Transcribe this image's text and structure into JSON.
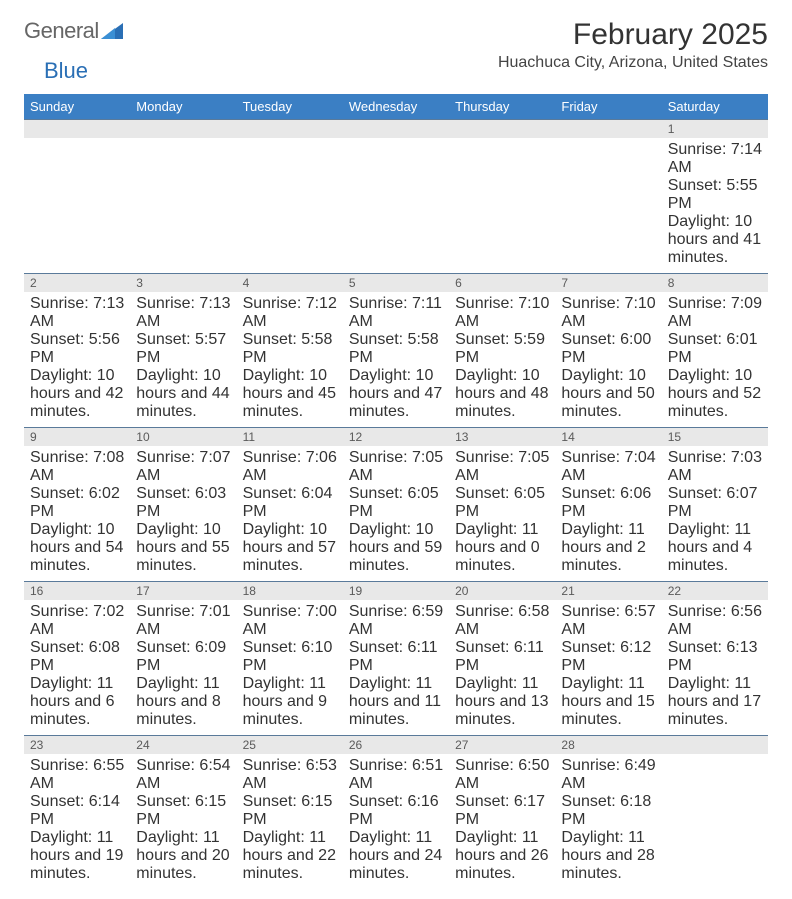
{
  "brand": {
    "text1": "General",
    "text2": "Blue"
  },
  "title": "February 2025",
  "location": "Huachuca City, Arizona, United States",
  "colors": {
    "header_bg": "#3b7fc4",
    "header_text": "#ffffff",
    "daynum_bg": "#e8e8e8",
    "daynum_text": "#5a5a5a",
    "week_border": "#5a7a9a",
    "body_text": "#333333",
    "page_bg": "#ffffff"
  },
  "typography": {
    "title_fontsize": 30,
    "location_fontsize": 16,
    "weekday_fontsize": 13,
    "daynum_fontsize": 12,
    "body_fontsize": 10.5
  },
  "weekdays": [
    "Sunday",
    "Monday",
    "Tuesday",
    "Wednesday",
    "Thursday",
    "Friday",
    "Saturday"
  ],
  "weeks": [
    [
      null,
      null,
      null,
      null,
      null,
      null,
      {
        "n": "1",
        "sunrise": "7:14 AM",
        "sunset": "5:55 PM",
        "dl": "10 hours and 41 minutes."
      }
    ],
    [
      {
        "n": "2",
        "sunrise": "7:13 AM",
        "sunset": "5:56 PM",
        "dl": "10 hours and 42 minutes."
      },
      {
        "n": "3",
        "sunrise": "7:13 AM",
        "sunset": "5:57 PM",
        "dl": "10 hours and 44 minutes."
      },
      {
        "n": "4",
        "sunrise": "7:12 AM",
        "sunset": "5:58 PM",
        "dl": "10 hours and 45 minutes."
      },
      {
        "n": "5",
        "sunrise": "7:11 AM",
        "sunset": "5:58 PM",
        "dl": "10 hours and 47 minutes."
      },
      {
        "n": "6",
        "sunrise": "7:10 AM",
        "sunset": "5:59 PM",
        "dl": "10 hours and 48 minutes."
      },
      {
        "n": "7",
        "sunrise": "7:10 AM",
        "sunset": "6:00 PM",
        "dl": "10 hours and 50 minutes."
      },
      {
        "n": "8",
        "sunrise": "7:09 AM",
        "sunset": "6:01 PM",
        "dl": "10 hours and 52 minutes."
      }
    ],
    [
      {
        "n": "9",
        "sunrise": "7:08 AM",
        "sunset": "6:02 PM",
        "dl": "10 hours and 54 minutes."
      },
      {
        "n": "10",
        "sunrise": "7:07 AM",
        "sunset": "6:03 PM",
        "dl": "10 hours and 55 minutes."
      },
      {
        "n": "11",
        "sunrise": "7:06 AM",
        "sunset": "6:04 PM",
        "dl": "10 hours and 57 minutes."
      },
      {
        "n": "12",
        "sunrise": "7:05 AM",
        "sunset": "6:05 PM",
        "dl": "10 hours and 59 minutes."
      },
      {
        "n": "13",
        "sunrise": "7:05 AM",
        "sunset": "6:05 PM",
        "dl": "11 hours and 0 minutes."
      },
      {
        "n": "14",
        "sunrise": "7:04 AM",
        "sunset": "6:06 PM",
        "dl": "11 hours and 2 minutes."
      },
      {
        "n": "15",
        "sunrise": "7:03 AM",
        "sunset": "6:07 PM",
        "dl": "11 hours and 4 minutes."
      }
    ],
    [
      {
        "n": "16",
        "sunrise": "7:02 AM",
        "sunset": "6:08 PM",
        "dl": "11 hours and 6 minutes."
      },
      {
        "n": "17",
        "sunrise": "7:01 AM",
        "sunset": "6:09 PM",
        "dl": "11 hours and 8 minutes."
      },
      {
        "n": "18",
        "sunrise": "7:00 AM",
        "sunset": "6:10 PM",
        "dl": "11 hours and 9 minutes."
      },
      {
        "n": "19",
        "sunrise": "6:59 AM",
        "sunset": "6:11 PM",
        "dl": "11 hours and 11 minutes."
      },
      {
        "n": "20",
        "sunrise": "6:58 AM",
        "sunset": "6:11 PM",
        "dl": "11 hours and 13 minutes."
      },
      {
        "n": "21",
        "sunrise": "6:57 AM",
        "sunset": "6:12 PM",
        "dl": "11 hours and 15 minutes."
      },
      {
        "n": "22",
        "sunrise": "6:56 AM",
        "sunset": "6:13 PM",
        "dl": "11 hours and 17 minutes."
      }
    ],
    [
      {
        "n": "23",
        "sunrise": "6:55 AM",
        "sunset": "6:14 PM",
        "dl": "11 hours and 19 minutes."
      },
      {
        "n": "24",
        "sunrise": "6:54 AM",
        "sunset": "6:15 PM",
        "dl": "11 hours and 20 minutes."
      },
      {
        "n": "25",
        "sunrise": "6:53 AM",
        "sunset": "6:15 PM",
        "dl": "11 hours and 22 minutes."
      },
      {
        "n": "26",
        "sunrise": "6:51 AM",
        "sunset": "6:16 PM",
        "dl": "11 hours and 24 minutes."
      },
      {
        "n": "27",
        "sunrise": "6:50 AM",
        "sunset": "6:17 PM",
        "dl": "11 hours and 26 minutes."
      },
      {
        "n": "28",
        "sunrise": "6:49 AM",
        "sunset": "6:18 PM",
        "dl": "11 hours and 28 minutes."
      },
      null
    ]
  ],
  "labels": {
    "sunrise": "Sunrise:",
    "sunset": "Sunset:",
    "daylight": "Daylight:"
  }
}
